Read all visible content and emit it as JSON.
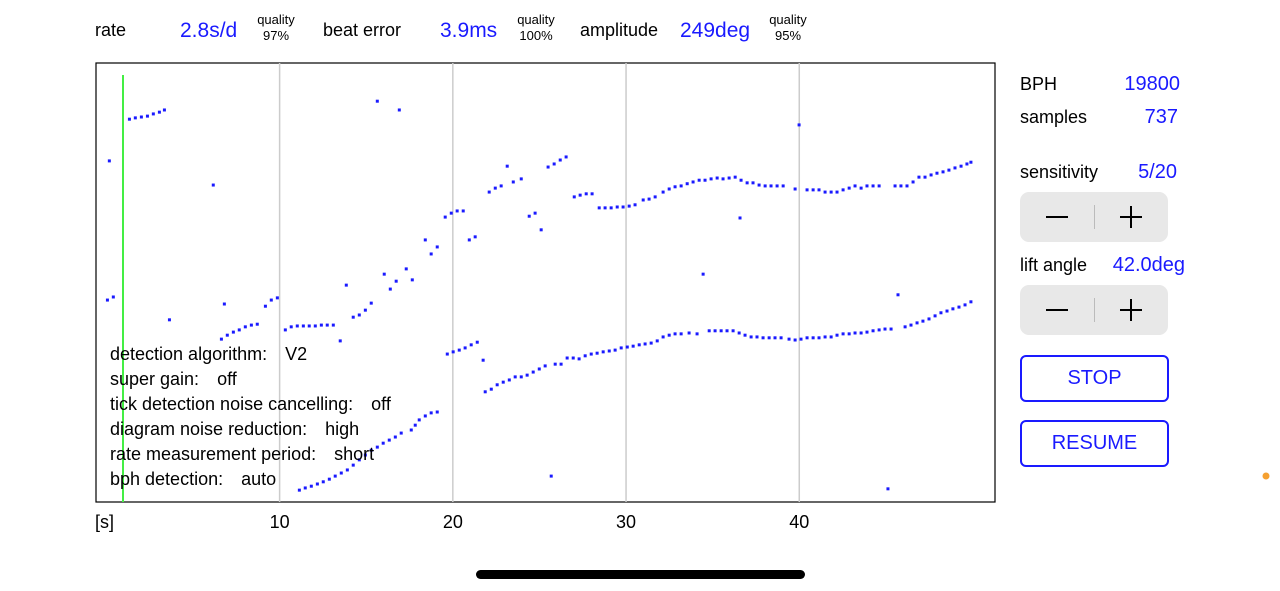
{
  "header": {
    "rate": {
      "label": "rate",
      "value": "2.8s/d",
      "quality_label": "quality",
      "quality": "97%"
    },
    "beat_error": {
      "label": "beat error",
      "value": "3.9ms",
      "quality_label": "quality",
      "quality": "100%"
    },
    "amplitude": {
      "label": "amplitude",
      "value": "249deg",
      "quality_label": "quality",
      "quality": "95%"
    }
  },
  "chart_data": {
    "type": "scatter",
    "xlabel": "[s]",
    "xlim": [
      -0.6,
      51.3
    ],
    "xticks": [
      10,
      20,
      30,
      40
    ],
    "ylim": [
      0,
      1
    ],
    "grid": true,
    "series": [
      {
        "color": "#1a1aff",
        "x": [
          1.33,
          1.67,
          2.02,
          2.37,
          2.71,
          3.06,
          3.35,
          10.33,
          10.67,
          11.02,
          11.37,
          11.71,
          12.06,
          12.41,
          12.75,
          13.1,
          14.25,
          14.6,
          14.95,
          15.29,
          16.04,
          16.39,
          16.73,
          17.31,
          17.66,
          18.41,
          18.75,
          19.1,
          19.56,
          19.91,
          20.25,
          20.6,
          20.95,
          21.29,
          22.1,
          22.45,
          22.79,
          23.49,
          23.95,
          24.41,
          24.75,
          25.1,
          25.5,
          25.85,
          26.2,
          26.54,
          27.01,
          27.35,
          27.7,
          28.04,
          28.45,
          28.79,
          29.14,
          29.49,
          29.83,
          30.18,
          30.52,
          30.99,
          31.33,
          31.68,
          32.14,
          32.49,
          32.83,
          33.18,
          33.53,
          33.87,
          34.22,
          34.56,
          34.91,
          35.26,
          35.6,
          35.95,
          36.3,
          36.64,
          36.99,
          37.33,
          37.68,
          38.03,
          38.37,
          38.72,
          39.07,
          39.76,
          40.45,
          40.8,
          41.14,
          41.49,
          41.84,
          42.18,
          42.53,
          42.88,
          43.22,
          43.57,
          43.91,
          44.26,
          44.61,
          45.53,
          45.87,
          46.22,
          46.57,
          46.91,
          47.26,
          47.61,
          47.95,
          48.3,
          48.64,
          48.99,
          49.34,
          49.68,
          49.91
        ],
        "values": [
          0.872,
          0.875,
          0.877,
          0.879,
          0.884,
          0.888,
          0.893,
          0.392,
          0.399,
          0.401,
          0.401,
          0.401,
          0.401,
          0.403,
          0.403,
          0.403,
          0.421,
          0.426,
          0.437,
          0.453,
          0.519,
          0.485,
          0.503,
          0.531,
          0.506,
          0.597,
          0.565,
          0.581,
          0.649,
          0.658,
          0.663,
          0.663,
          0.597,
          0.604,
          0.706,
          0.715,
          0.72,
          0.729,
          0.736,
          0.651,
          0.658,
          0.62,
          0.763,
          0.77,
          0.779,
          0.786,
          0.695,
          0.699,
          0.702,
          0.702,
          0.67,
          0.67,
          0.67,
          0.672,
          0.672,
          0.674,
          0.677,
          0.688,
          0.69,
          0.695,
          0.706,
          0.713,
          0.718,
          0.72,
          0.725,
          0.729,
          0.733,
          0.733,
          0.736,
          0.738,
          0.736,
          0.738,
          0.74,
          0.733,
          0.727,
          0.727,
          0.722,
          0.72,
          0.72,
          0.72,
          0.72,
          0.713,
          0.711,
          0.711,
          0.711,
          0.706,
          0.706,
          0.706,
          0.711,
          0.715,
          0.72,
          0.715,
          0.72,
          0.72,
          0.72,
          0.72,
          0.72,
          0.72,
          0.729,
          0.74,
          0.74,
          0.745,
          0.749,
          0.752,
          0.756,
          0.761,
          0.765,
          0.77,
          0.774
        ]
      },
      {
        "color": "#1a1aff",
        "x": [
          0.06,
          0.4,
          6.64,
          6.98,
          7.33,
          7.67,
          8.02,
          8.37,
          8.71,
          9.18,
          9.52,
          9.87,
          11.14,
          11.48,
          11.83,
          12.18,
          12.52,
          12.87,
          13.21,
          13.56,
          13.91,
          14.25,
          14.6,
          14.95,
          15.29,
          15.64,
          15.98,
          16.33,
          16.68,
          17.02,
          17.6,
          17.83,
          18.06,
          18.41,
          18.75,
          19.1,
          19.68,
          20.02,
          20.37,
          20.71,
          21.06,
          21.41,
          21.87,
          22.22,
          22.56,
          22.91,
          23.26,
          23.6,
          23.95,
          24.29,
          24.64,
          24.99,
          25.33,
          25.91,
          26.25,
          26.6,
          26.95,
          27.29,
          27.64,
          27.99,
          28.33,
          28.68,
          29.03,
          29.37,
          29.72,
          30.07,
          30.41,
          30.76,
          31.1,
          31.45,
          31.8,
          32.14,
          32.49,
          32.83,
          33.18,
          33.64,
          34.1,
          34.8,
          35.14,
          35.49,
          35.83,
          36.18,
          36.53,
          36.87,
          37.22,
          37.56,
          37.91,
          38.26,
          38.6,
          38.95,
          39.41,
          39.76,
          40.1,
          40.45,
          40.8,
          41.14,
          41.49,
          41.84,
          42.18,
          42.53,
          42.88,
          43.22,
          43.57,
          43.91,
          44.26,
          44.61,
          44.95,
          45.3,
          46.11,
          46.45,
          46.8,
          47.14,
          47.49,
          47.84,
          48.18,
          48.53,
          48.87,
          49.22,
          49.57,
          49.91
        ],
        "values": [
          0.46,
          0.467,
          0.371,
          0.38,
          0.387,
          0.392,
          0.399,
          0.403,
          0.405,
          0.446,
          0.46,
          0.465,
          0.027,
          0.032,
          0.036,
          0.041,
          0.046,
          0.052,
          0.059,
          0.066,
          0.073,
          0.084,
          0.096,
          0.107,
          0.118,
          0.125,
          0.134,
          0.141,
          0.148,
          0.157,
          0.164,
          0.175,
          0.187,
          0.196,
          0.203,
          0.205,
          0.337,
          0.342,
          0.346,
          0.351,
          0.358,
          0.364,
          0.251,
          0.257,
          0.267,
          0.273,
          0.278,
          0.285,
          0.285,
          0.289,
          0.296,
          0.303,
          0.31,
          0.314,
          0.314,
          0.328,
          0.328,
          0.326,
          0.333,
          0.337,
          0.339,
          0.342,
          0.344,
          0.346,
          0.351,
          0.353,
          0.355,
          0.358,
          0.36,
          0.362,
          0.367,
          0.376,
          0.38,
          0.383,
          0.383,
          0.385,
          0.383,
          0.39,
          0.39,
          0.39,
          0.39,
          0.39,
          0.385,
          0.38,
          0.376,
          0.376,
          0.374,
          0.374,
          0.374,
          0.374,
          0.371,
          0.369,
          0.371,
          0.374,
          0.374,
          0.374,
          0.376,
          0.376,
          0.38,
          0.383,
          0.383,
          0.385,
          0.385,
          0.387,
          0.39,
          0.392,
          0.394,
          0.394,
          0.399,
          0.403,
          0.408,
          0.412,
          0.417,
          0.424,
          0.431,
          0.435,
          0.44,
          0.444,
          0.449,
          0.456
        ]
      },
      {
        "color": "#1a1aff",
        "x": [
          0.17,
          6.17,
          6.81,
          3.64,
          13.5,
          13.85,
          15.64,
          16.91,
          23.14,
          34.45,
          36.58,
          39.99,
          45.7,
          25.68,
          45.12,
          21.75
        ],
        "values": [
          0.777,
          0.722,
          0.451,
          0.415,
          0.367,
          0.494,
          0.913,
          0.893,
          0.765,
          0.519,
          0.647,
          0.859,
          0.472,
          0.059,
          0.03,
          0.323
        ]
      }
    ]
  },
  "settings": [
    {
      "label": "detection algorithm:",
      "value": "V2"
    },
    {
      "label": "super gain:",
      "value": "off"
    },
    {
      "label": "tick detection noise cancelling:",
      "value": "off"
    },
    {
      "label": "diagram noise reduction:",
      "value": "high"
    },
    {
      "label": "rate measurement period:",
      "value": "short"
    },
    {
      "label": "bph detection:",
      "value": "auto"
    }
  ],
  "panel": {
    "bph_label": "BPH",
    "bph": "19800",
    "samples_label": "samples",
    "samples": "737",
    "sensitivity_label": "sensitivity",
    "sensitivity": "5/20",
    "lift_angle_label": "lift angle",
    "lift_angle": "42.0deg",
    "stop": "STOP",
    "resume": "RESUME"
  }
}
